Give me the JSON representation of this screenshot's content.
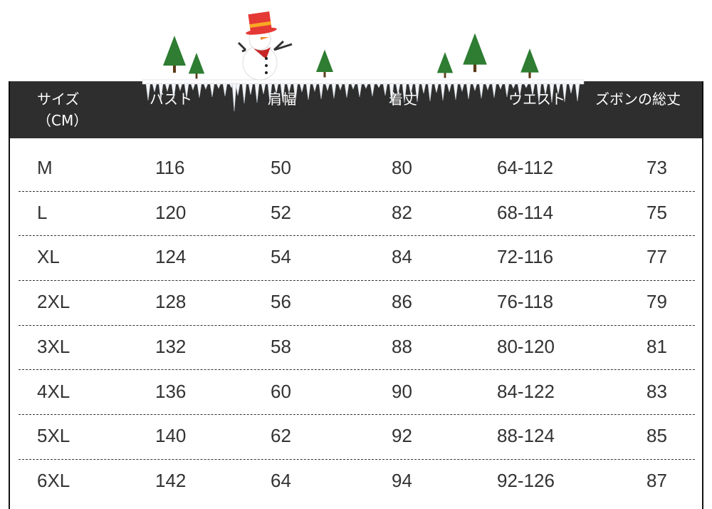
{
  "headers": {
    "size": "サイズ",
    "size_unit": "（CM）",
    "bust": "バスト",
    "shoulder": "肩幅",
    "length": "着丈",
    "waist": "ウエスト",
    "pants_length": "ズボンの総丈"
  },
  "rows": [
    {
      "size": "M",
      "bust": "116",
      "shoulder": "50",
      "length": "80",
      "waist": "64-112",
      "pants_length": "73"
    },
    {
      "size": "L",
      "bust": "120",
      "shoulder": "52",
      "length": "82",
      "waist": "68-114",
      "pants_length": "75"
    },
    {
      "size": "XL",
      "bust": "124",
      "shoulder": "54",
      "length": "84",
      "waist": "72-116",
      "pants_length": "77"
    },
    {
      "size": "2XL",
      "bust": "128",
      "shoulder": "56",
      "length": "86",
      "waist": "76-118",
      "pants_length": "79"
    },
    {
      "size": "3XL",
      "bust": "132",
      "shoulder": "58",
      "length": "88",
      "waist": "80-120",
      "pants_length": "81"
    },
    {
      "size": "4XL",
      "bust": "136",
      "shoulder": "60",
      "length": "90",
      "waist": "84-122",
      "pants_length": "83"
    },
    {
      "size": "5XL",
      "bust": "140",
      "shoulder": "62",
      "length": "92",
      "waist": "88-124",
      "pants_length": "85"
    },
    {
      "size": "6XL",
      "bust": "142",
      "shoulder": "64",
      "length": "94",
      "waist": "92-126",
      "pants_length": "87"
    }
  ],
  "colors": {
    "header_bg": "#2e2e2e",
    "tree": "#2e7d32",
    "hat": "#e53935"
  }
}
